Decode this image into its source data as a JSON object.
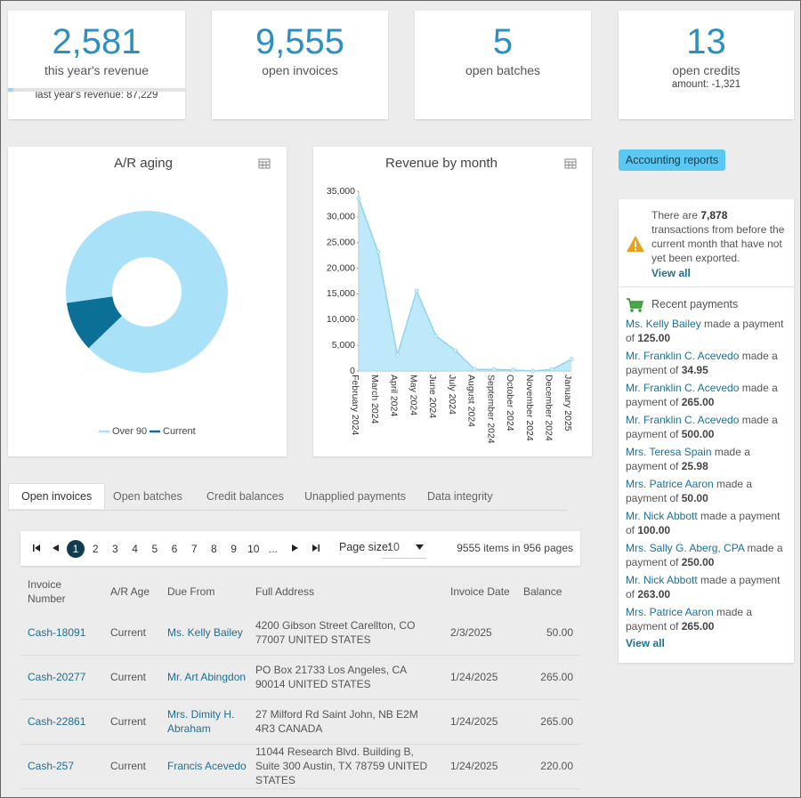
{
  "kpis": [
    {
      "value": "2,581",
      "label": "this year's revenue",
      "note": "last year's revenue: 87,229"
    },
    {
      "value": "9,555",
      "label": "open invoices"
    },
    {
      "value": "5",
      "label": "open batches"
    },
    {
      "value": "13",
      "label": "open credits",
      "note": "amount: -1,321"
    }
  ],
  "chart_data": [
    {
      "type": "pie",
      "title": "A/R aging",
      "categories": [
        "Over 90",
        "Current"
      ],
      "values": [
        90,
        10
      ],
      "colors": [
        "#a8e1f8",
        "#0b6f96"
      ],
      "donut": true,
      "legend": "bottom"
    },
    {
      "type": "area",
      "title": "Revenue by month",
      "x": [
        "February 2024",
        "March 2024",
        "April 2024",
        "May 2024",
        "June 2024",
        "July 2024",
        "August 2024",
        "September 2024",
        "October 2024",
        "November 2024",
        "December 2024",
        "January 2025"
      ],
      "values": [
        33600,
        23200,
        3100,
        15600,
        6800,
        4000,
        300,
        300,
        200,
        0,
        300,
        2300
      ],
      "color": "#a8e1f8",
      "ylim": [
        0,
        35000
      ],
      "yticks": [
        0,
        {
          "value": 5000,
          "label": "5,000"
        },
        {
          "value": 10000,
          "label": "10,000"
        },
        {
          "value": 15000,
          "label": "15,000"
        },
        {
          "value": 20000,
          "label": "20,000"
        },
        {
          "value": 25000,
          "label": "25,000"
        },
        {
          "value": 30000,
          "label": "30,000"
        },
        {
          "value": 35000,
          "label": "35,000"
        }
      ],
      "grid": false
    }
  ],
  "tabs": [
    "Open invoices",
    "Open batches",
    "Credit balances",
    "Unapplied payments",
    "Data integrity"
  ],
  "active_tab": 0,
  "pagination": {
    "pages": [
      "1",
      "2",
      "3",
      "4",
      "5",
      "6",
      "7",
      "8",
      "9",
      "10",
      "..."
    ],
    "current": 0,
    "page_size_label": "Page size:",
    "page_size": "10",
    "summary": "9555 items in 956 pages"
  },
  "table": {
    "columns": [
      "Invoice Number",
      "A/R Age",
      "Due From",
      "Full Address",
      "Invoice Date",
      "Balance"
    ],
    "rows": [
      [
        "Cash-18091",
        "Current",
        "Ms. Kelly Bailey",
        "4200 Gibson Street Carellton, CO 77007 UNITED STATES",
        "2/3/2025",
        "50.00"
      ],
      [
        "Cash-20277",
        "Current",
        "Mr. Art Abingdon",
        "PO Box 21733 Los Angeles, CA 90014 UNITED STATES",
        "1/24/2025",
        "265.00"
      ],
      [
        "Cash-22861",
        "Current",
        "Mrs. Dimity H. Abraham",
        "27 Milford Rd Saint John, NB E2M 4R3 CANADA",
        "1/24/2025",
        "265.00"
      ],
      [
        "Cash-257",
        "Current",
        "Francis Acevedo",
        "11044 Research Blvd. Building B, Suite 300 Austin, TX 78759 UNITED STATES",
        "1/24/2025",
        "220.00"
      ]
    ]
  },
  "sidebar": {
    "button": "Accounting reports",
    "alert": {
      "prefix": "There are",
      "count": "7,878",
      "suffix": "transactions from before the current month that have not yet been exported.",
      "link": "View all"
    },
    "payments": {
      "title": "Recent payments",
      "phrase": "made a payment of",
      "link": "View all",
      "items": [
        {
          "name": "Ms. Kelly Bailey",
          "amount": "125.00"
        },
        {
          "name": "Mr. Franklin C. Acevedo",
          "amount": "34.95"
        },
        {
          "name": "Mr. Franklin C. Acevedo",
          "amount": "265.00"
        },
        {
          "name": "Mr. Franklin C. Acevedo",
          "amount": "500.00"
        },
        {
          "name": "Mrs. Teresa Spain",
          "amount": "25.98"
        },
        {
          "name": "Mrs. Patrice Aaron",
          "amount": "50.00"
        },
        {
          "name": "Mr. Nick Abbott",
          "amount": "100.00"
        },
        {
          "name": "Mrs. Sally G. Aberg, CPA",
          "amount": "250.00"
        },
        {
          "name": "Mr. Nick Abbott",
          "amount": "263.00"
        },
        {
          "name": "Mrs. Patrice Aaron",
          "amount": "265.00"
        }
      ]
    }
  }
}
